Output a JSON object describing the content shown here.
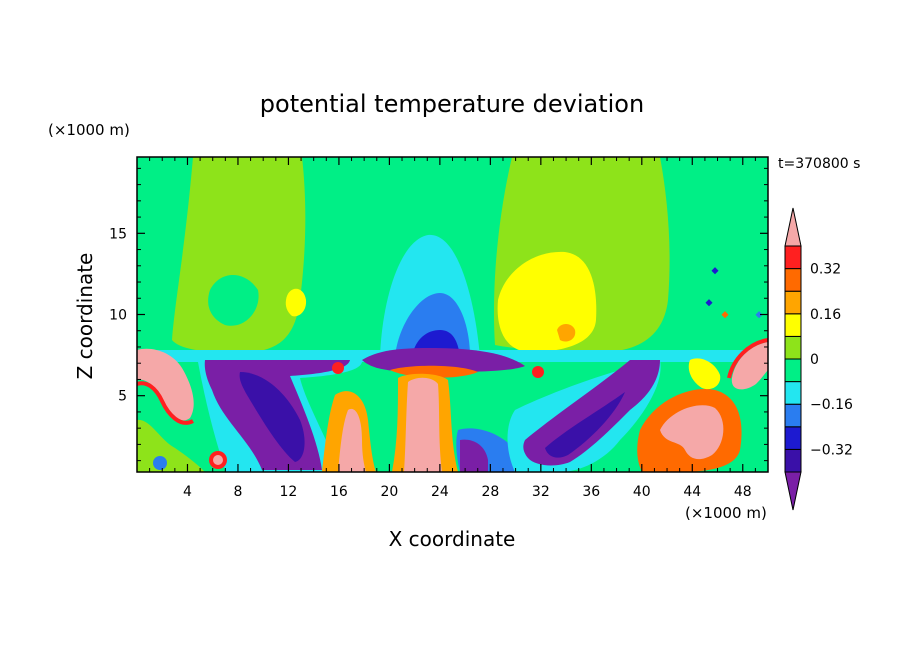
{
  "chart_data": {
    "type": "heatmap",
    "title": "potential temperature deviation",
    "time_label": "t=370800 s",
    "xlabel": "X coordinate",
    "ylabel": "Z coordinate",
    "x_unit": "(×1000 m)",
    "y_unit": "(×1000 m)",
    "xlim": [
      0,
      50
    ],
    "ylim": [
      0.3,
      19.7
    ],
    "x_ticks": [
      4,
      8,
      12,
      16,
      20,
      24,
      28,
      32,
      36,
      40,
      44,
      48
    ],
    "x_tick_labels": [
      "4",
      "8",
      "12",
      "16",
      "20",
      "24",
      "28",
      "32",
      "36",
      "40",
      "44",
      "48"
    ],
    "y_ticks": [
      5,
      10,
      15
    ],
    "y_tick_labels": [
      "5",
      "10",
      "15"
    ],
    "colorbar": {
      "levels": [
        -0.4,
        -0.32,
        -0.24,
        -0.16,
        -0.08,
        0,
        0.08,
        0.16,
        0.24,
        0.32,
        0.4
      ],
      "labeled": [
        {
          "value": 0.32,
          "label": "0.32"
        },
        {
          "value": 0.16,
          "label": "0.16"
        },
        {
          "value": 0,
          "label": "0"
        },
        {
          "value": -0.16,
          "label": "−0.16"
        },
        {
          "value": -0.32,
          "label": "−0.32"
        }
      ],
      "colors_low_to_high": [
        "#7a1fa6",
        "#3a10a8",
        "#1d1ad0",
        "#2a7df0",
        "#23e6f0",
        "#00ef86",
        "#8ee31a",
        "#ffff00",
        "#ffa500",
        "#ff6a00",
        "#ff2020",
        "#f5a8a8"
      ],
      "extend": "both"
    },
    "regions": [
      {
        "name": "background",
        "value": 0.0
      },
      {
        "name": "upper-plume-left",
        "value": 0.05
      },
      {
        "name": "upper-plume-right",
        "value": 0.05
      },
      {
        "name": "center-cool-column-outer",
        "value": -0.06
      },
      {
        "name": "center-cool-column-mid",
        "value": -0.13
      },
      {
        "name": "center-cool-column-core",
        "value": -0.22
      },
      {
        "name": "yellow-warm-patch",
        "value": 0.12
      },
      {
        "name": "upper-left-green-patch",
        "value": -0.02
      },
      {
        "name": "left-cold-diagonal",
        "value": -0.38
      },
      {
        "name": "right-cold-diagonal",
        "value": -0.38
      },
      {
        "name": "center-cold-lens",
        "value": -0.36
      },
      {
        "name": "left-warm-edge",
        "value": 0.42
      },
      {
        "name": "right-warm-edge",
        "value": 0.42
      },
      {
        "name": "center-warm-column",
        "value": 0.42
      },
      {
        "name": "lower-right-warm-blob",
        "value": 0.42
      }
    ]
  }
}
